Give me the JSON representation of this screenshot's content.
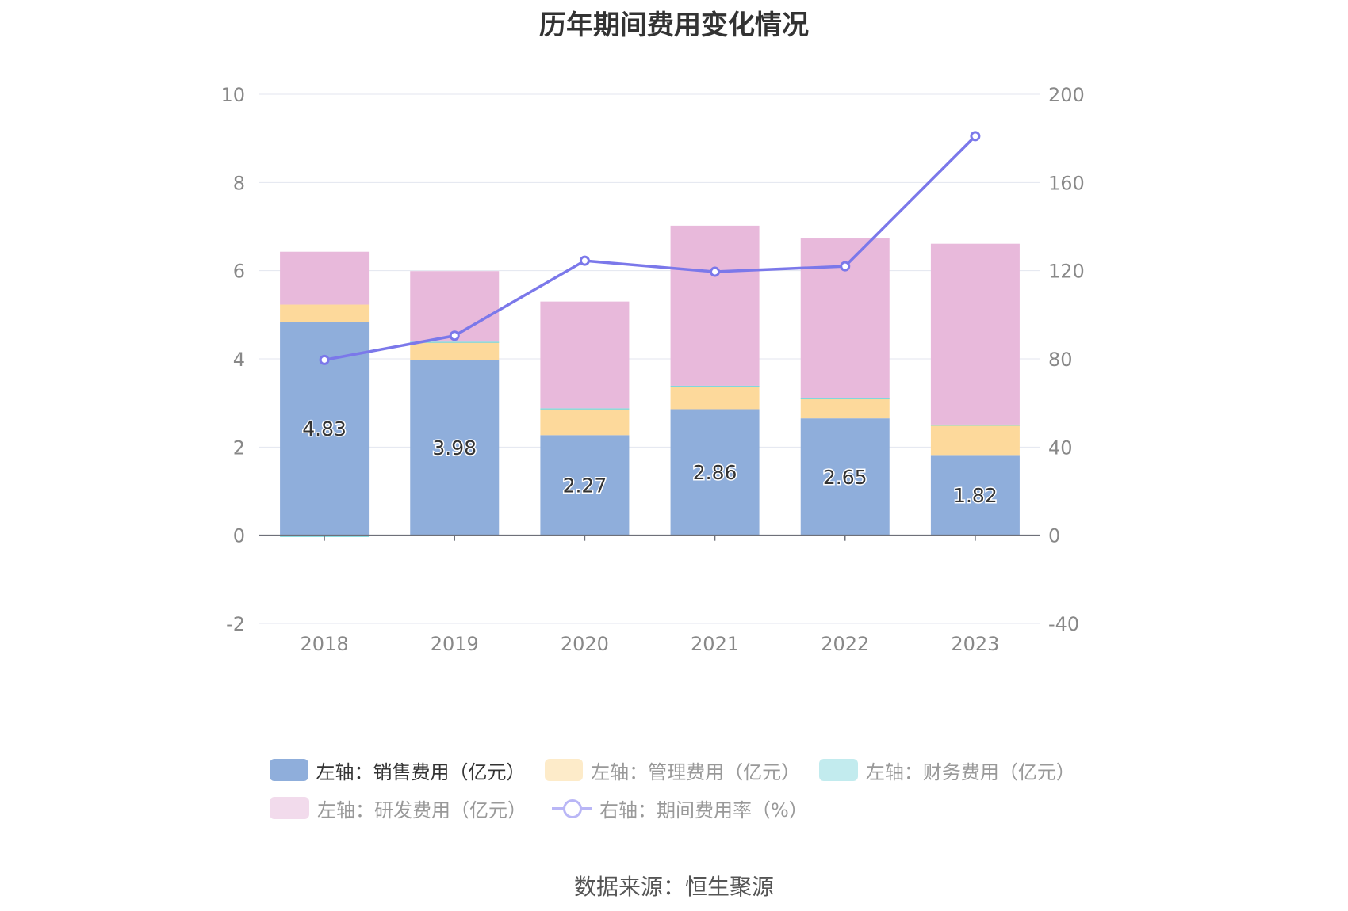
{
  "source_label": "数据来源：恒生聚源",
  "chart_data": {
    "type": "bar",
    "title": "历年期间费用变化情况",
    "categories": [
      "2018",
      "2019",
      "2020",
      "2021",
      "2022",
      "2023"
    ],
    "y_left": {
      "min": -2,
      "max": 10,
      "ticks": [
        -2,
        0,
        2,
        4,
        6,
        8,
        10
      ]
    },
    "y_right": {
      "min": -40,
      "max": 200,
      "ticks": [
        -40,
        0,
        40,
        80,
        120,
        160,
        200
      ]
    },
    "grid": true,
    "legend_position": "bottom",
    "series": [
      {
        "name": "左轴：销售费用（亿元）",
        "type": "bar",
        "axis": "left",
        "color": "#8faedb",
        "values": [
          4.83,
          3.98,
          2.27,
          2.86,
          2.65,
          1.82
        ],
        "labels": [
          "4.83",
          "3.98",
          "2.27",
          "2.86",
          "2.65",
          "1.82"
        ]
      },
      {
        "name": "左轴：管理费用（亿元）",
        "type": "bar",
        "axis": "left",
        "color": "#fdd99b",
        "values": [
          0.4,
          0.4,
          0.6,
          0.52,
          0.45,
          0.68
        ]
      },
      {
        "name": "左轴：财务费用（亿元）",
        "type": "bar",
        "axis": "left",
        "color": "#7fd8dd",
        "values": [
          -0.04,
          0.01,
          0.01,
          0.01,
          0.01,
          0.01
        ]
      },
      {
        "name": "左轴：研发费用（亿元）",
        "type": "bar",
        "axis": "left",
        "color": "#e8b9db",
        "values": [
          1.2,
          1.6,
          2.42,
          3.63,
          3.62,
          4.1
        ]
      },
      {
        "name": "右轴：期间费用率（%）",
        "type": "line",
        "axis": "right",
        "color": "#7b78ea",
        "values": [
          79.5,
          90.5,
          124.5,
          119.5,
          122,
          181
        ]
      }
    ]
  }
}
